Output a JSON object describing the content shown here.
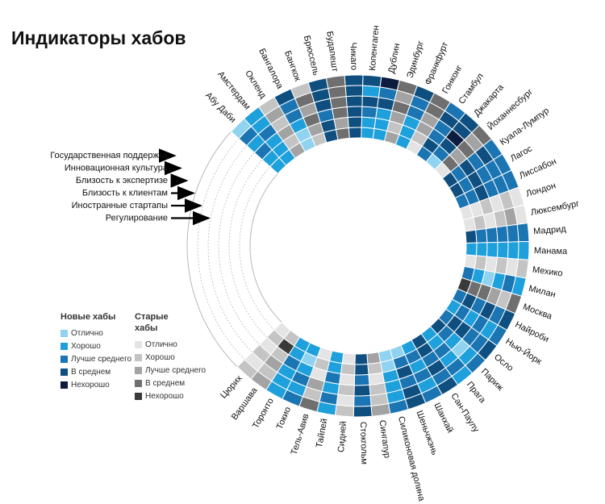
{
  "title": "Индикаторы хабов",
  "chart_data": {
    "type": "heatmap",
    "layout": "radial",
    "indicators": [
      "Государственная поддержка",
      "Инновационная культура",
      "Близость к экспертизе",
      "Близость к клиентам",
      "Иностранные стартапы",
      "Регулирование"
    ],
    "levels": [
      "Отлично",
      "Хорошо",
      "Лучше среднего",
      "В среднем",
      "Нехорошо"
    ],
    "groups": {
      "new": {
        "label": "Новые хабы",
        "colors": [
          "#8fd3f1",
          "#1ea0dc",
          "#1b75b3",
          "#0e4f80",
          "#0d1b3e"
        ]
      },
      "old": {
        "label": "Старые хабы",
        "colors": [
          "#e4e4e4",
          "#c4c4c4",
          "#a3a3a3",
          "#6f6f6f",
          "#3a3a3a"
        ]
      }
    },
    "hubs": [
      {
        "name": "Абу Даби",
        "group": "new",
        "scores": [
          2,
          2,
          3,
          2,
          3,
          1
        ]
      },
      {
        "name": "Амстердам",
        "group": "new",
        "scores": [
          2,
          2,
          2,
          3,
          2,
          2
        ]
      },
      {
        "name": "Окленд",
        "group": "old",
        "scores": [
          3,
          2,
          3,
          2,
          3,
          2
        ]
      },
      {
        "name": "Бангалора",
        "group": "new",
        "scores": [
          1,
          1,
          2,
          3,
          3,
          4
        ]
      },
      {
        "name": "Бангкок",
        "group": "old",
        "scores": [
          2,
          3,
          4,
          3,
          4,
          2
        ]
      },
      {
        "name": "Брюссель",
        "group": "new",
        "scores": [
          4,
          4,
          3,
          4,
          4,
          4
        ]
      },
      {
        "name": "Будапешт",
        "group": "old",
        "scores": [
          4,
          3,
          4,
          4,
          4,
          4
        ]
      },
      {
        "name": "Чикаго",
        "group": "new",
        "scores": [
          4,
          4,
          4,
          4,
          4,
          4
        ]
      },
      {
        "name": "Копенгаген",
        "group": "new",
        "scores": [
          2,
          2,
          3,
          4,
          2,
          4
        ]
      },
      {
        "name": "Дублин",
        "group": "new",
        "scores": [
          2,
          2,
          2,
          4,
          3,
          5
        ]
      },
      {
        "name": "Эдинбург",
        "group": "old",
        "scores": [
          3,
          2,
          3,
          4,
          3,
          4
        ]
      },
      {
        "name": "Франкфурт",
        "group": "new",
        "scores": [
          2,
          2,
          2,
          3,
          3,
          4
        ]
      },
      {
        "name": "Гонконг",
        "group": "old",
        "scores": [
          1,
          2,
          3,
          3,
          4,
          4
        ]
      },
      {
        "name": "Стамбул",
        "group": "new",
        "scores": [
          3,
          4,
          3,
          3,
          4,
          3
        ]
      },
      {
        "name": "Джакарта",
        "group": "new",
        "scores": [
          1,
          3,
          4,
          5,
          4,
          4
        ]
      },
      {
        "name": "Йоханнесбург",
        "group": "old",
        "scores": [
          1,
          4,
          3,
          4,
          3,
          4
        ]
      },
      {
        "name": "Куала-Лумпур",
        "group": "new",
        "scores": [
          4,
          3,
          4,
          3,
          4,
          3
        ]
      },
      {
        "name": "Лагос",
        "group": "new",
        "scores": [
          4,
          3,
          4,
          3,
          3,
          3
        ]
      },
      {
        "name": "Лиссабон",
        "group": "new",
        "scores": [
          3,
          3,
          4,
          3,
          3,
          3
        ]
      },
      {
        "name": "Лондон",
        "group": "old",
        "scores": [
          1,
          1,
          2,
          1,
          2,
          1
        ]
      },
      {
        "name": "Люксембург",
        "group": "old",
        "scores": [
          1,
          2,
          1,
          2,
          3,
          1
        ]
      },
      {
        "name": "Мадрид",
        "group": "new",
        "scores": [
          4,
          3,
          3,
          3,
          3,
          3
        ]
      },
      {
        "name": "Манама",
        "group": "new",
        "scores": [
          2,
          2,
          2,
          2,
          2,
          2
        ]
      },
      {
        "name": "Мехико",
        "group": "old",
        "scores": [
          1,
          2,
          1,
          2,
          1,
          2
        ]
      },
      {
        "name": "Милан",
        "group": "new",
        "scores": [
          3,
          2,
          1,
          2,
          3,
          2
        ]
      },
      {
        "name": "Москва",
        "group": "old",
        "scores": [
          5,
          4,
          4,
          3,
          2,
          4
        ]
      },
      {
        "name": "Найроби",
        "group": "new",
        "scores": [
          3,
          4,
          3,
          4,
          3,
          4
        ]
      },
      {
        "name": "Нью-Йорк",
        "group": "new",
        "scores": [
          2,
          3,
          2,
          3,
          2,
          3
        ]
      },
      {
        "name": "Осло",
        "group": "new",
        "scores": [
          3,
          4,
          4,
          3,
          3,
          4
        ]
      },
      {
        "name": "Париж",
        "group": "new",
        "scores": [
          4,
          3,
          2,
          1,
          2,
          3
        ]
      },
      {
        "name": "Прага",
        "group": "new",
        "scores": [
          2,
          2,
          3,
          2,
          3,
          2
        ]
      },
      {
        "name": "Сан-Паулу",
        "group": "new",
        "scores": [
          4,
          4,
          3,
          4,
          3,
          4
        ]
      },
      {
        "name": "Шанхай",
        "group": "new",
        "scores": [
          2,
          3,
          2,
          3,
          2,
          3
        ]
      },
      {
        "name": "Шеньчжэнь",
        "group": "new",
        "scores": [
          1,
          3,
          4,
          3,
          4,
          4
        ]
      },
      {
        "name": "Силиконовая долина",
        "group": "new",
        "scores": [
          1,
          1,
          2,
          2,
          2,
          3
        ]
      },
      {
        "name": "Сингапур",
        "group": "old",
        "scores": [
          3,
          2,
          1,
          2,
          2,
          3
        ]
      },
      {
        "name": "Стокгольм",
        "group": "new",
        "scores": [
          4,
          4,
          3,
          4,
          3,
          4
        ]
      },
      {
        "name": "Сидней",
        "group": "old",
        "scores": [
          1,
          2,
          1,
          2,
          1,
          2
        ]
      },
      {
        "name": "Тайпей",
        "group": "new",
        "scores": [
          2,
          2,
          3,
          2,
          3,
          2
        ]
      },
      {
        "name": "Тель-Авив",
        "group": "old",
        "scores": [
          1,
          2,
          1,
          3,
          2,
          4
        ]
      },
      {
        "name": "Токио",
        "group": "new",
        "scores": [
          2,
          1,
          2,
          3,
          2,
          3
        ]
      },
      {
        "name": "Торонто",
        "group": "new",
        "scores": [
          2,
          2,
          3,
          2,
          2,
          2
        ]
      },
      {
        "name": "Варшава",
        "group": "old",
        "scores": [
          2,
          5,
          2,
          3,
          2,
          3
        ]
      },
      {
        "name": "Цюрих",
        "group": "old",
        "scores": [
          1,
          2,
          1,
          2,
          1,
          2
        ]
      }
    ]
  }
}
